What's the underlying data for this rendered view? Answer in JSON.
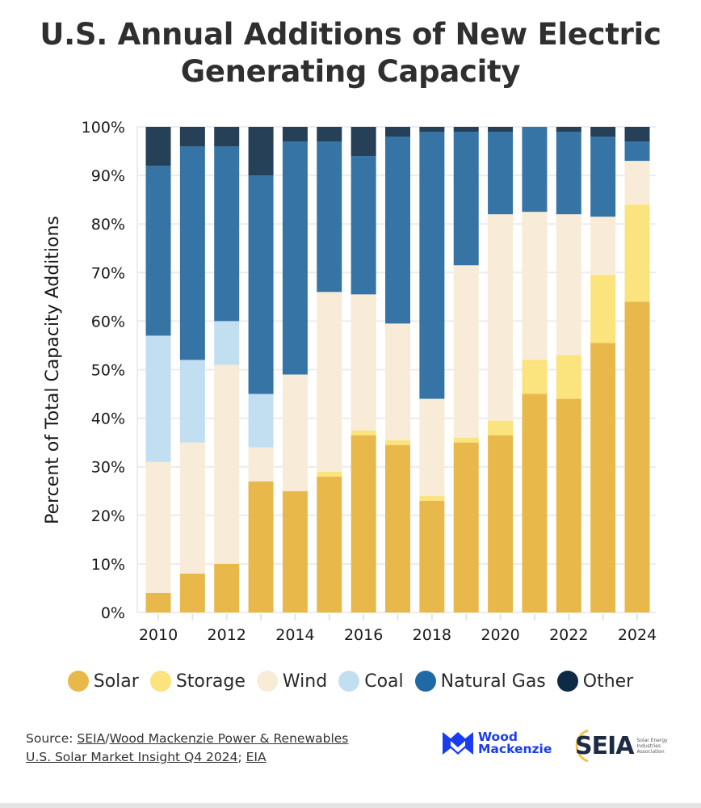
{
  "chart_data": {
    "type": "bar",
    "stacked": true,
    "title": "U.S. Annual Additions of New Electric Generating Capacity",
    "xlabel": "",
    "ylabel": "Percent of Total Capacity Additions",
    "ylim": [
      0,
      100
    ],
    "y_ticks": [
      "0%",
      "10%",
      "20%",
      "30%",
      "40%",
      "50%",
      "60%",
      "70%",
      "80%",
      "90%",
      "100%"
    ],
    "x_tick_labels": [
      "2010",
      "2012",
      "2014",
      "2016",
      "2018",
      "2020",
      "2022",
      "2024"
    ],
    "grid": true,
    "legend_position": "bottom",
    "categories": [
      "2010",
      "2011",
      "2012",
      "2013",
      "2014",
      "2015",
      "2016",
      "2017",
      "2018",
      "2019",
      "2020",
      "2021",
      "2022",
      "2023",
      "2024"
    ],
    "series": [
      {
        "name": "Solar",
        "color": "#e8b94a",
        "values": [
          4,
          8,
          10,
          27,
          25,
          28,
          36.5,
          34.5,
          23,
          35,
          36.5,
          45,
          44,
          55.5,
          64
        ]
      },
      {
        "name": "Storage",
        "color": "#fbe37e",
        "values": [
          0,
          0,
          0,
          0,
          0,
          1,
          1,
          1,
          1,
          1,
          3,
          7,
          9,
          14,
          20
        ]
      },
      {
        "name": "Wind",
        "color": "#f8ebd7",
        "values": [
          27,
          27,
          41,
          7,
          24,
          37,
          28,
          24,
          20,
          35.5,
          42.5,
          30.5,
          29,
          12,
          9
        ]
      },
      {
        "name": "Coal",
        "color": "#c2dff2",
        "values": [
          26,
          17,
          9,
          11,
          0,
          0,
          0,
          0,
          0,
          0,
          0,
          0,
          0,
          0,
          0
        ]
      },
      {
        "name": "Natural Gas",
        "color": "#3674a6",
        "values": [
          35,
          44,
          36,
          45,
          48,
          31,
          28.5,
          38.5,
          55,
          27.5,
          17,
          17.5,
          17,
          16.5,
          4
        ]
      },
      {
        "name": "Other",
        "color": "#264058",
        "values": [
          8,
          4,
          4,
          10,
          3,
          3,
          6,
          2,
          1,
          1,
          1,
          0,
          1,
          2,
          3
        ]
      }
    ]
  },
  "legend": [
    {
      "label": "Solar",
      "color": "#e8b94a"
    },
    {
      "label": "Storage",
      "color": "#fbe37e"
    },
    {
      "label": "Wind",
      "color": "#f8ebd7"
    },
    {
      "label": "Coal",
      "color": "#c2dff2"
    },
    {
      "label": "Natural Gas",
      "color": "#1f6aa5"
    },
    {
      "label": "Other",
      "color": "#0f2a45"
    }
  ],
  "source": {
    "prefix": "Source: ",
    "link1": "SEIA",
    "sep1": "/",
    "link2": "Wood Mackenzie Power & Renewables",
    "link3": "U.S. Solar Market Insight Q4 2024",
    "sep2": "; ",
    "link4": "EIA"
  },
  "logos": {
    "woodmac_line1": "Wood",
    "woodmac_line2": "Mackenzie",
    "seia": "SEIA",
    "seia_sub1": "Solar Energy",
    "seia_sub2": "Industries",
    "seia_sub3": "Association"
  }
}
